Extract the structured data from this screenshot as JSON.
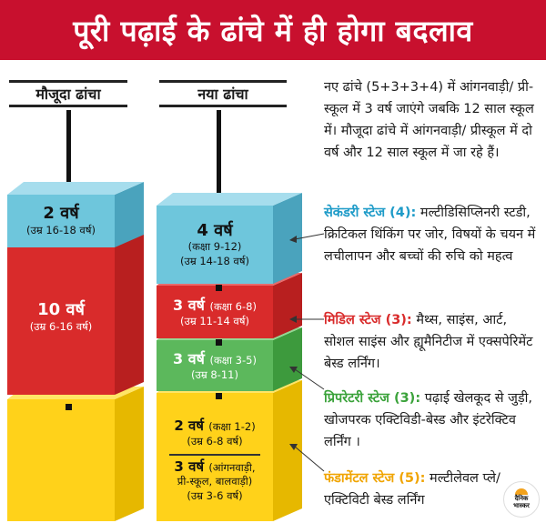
{
  "title": "पूरी पढ़ाई के ढांचे में ही होगा बदलाव",
  "columns": {
    "current": "मौजूदा ढांचा",
    "new": "नया ढांचा"
  },
  "current_blocks": {
    "top": {
      "years": "2 वर्ष",
      "age": "(उम्र 16-18 वर्ष)"
    },
    "middle": {
      "years": "10 वर्ष",
      "age": "(उम्र 6-16 वर्ष)"
    }
  },
  "new_blocks": {
    "secondary": {
      "years": "4 वर्ष",
      "class": "(कक्षा 9-12)",
      "age": "(उम्र 14-18 वर्ष)"
    },
    "middle": {
      "years": "3 वर्ष",
      "class": "(कक्षा 6-8)",
      "age": "(उम्र 11-14 वर्ष)"
    },
    "preparatory": {
      "years": "3 वर्ष",
      "class": "(कक्षा 3-5)",
      "age": "(उम्र 8-11)"
    },
    "foundational_a": {
      "years": "2 वर्ष",
      "class": "(कक्षा 1-2)",
      "age": "(उम्र 6-8 वर्ष)"
    },
    "foundational_b": {
      "years": "3 वर्ष",
      "line1": "(आंगनवाड़ी,",
      "line2": "प्री-स्कूल, बालवाड़ी)",
      "age": "(उम्र 3-6 वर्ष)"
    }
  },
  "descriptions": {
    "intro": "नए ढांचे (5+3+3+4) में आंगनवाड़ी/ प्री-स्कूल में 3 वर्ष जाएंगे जबकि 12 साल स्कूल में। मौजूदा ढांचे में आंगनवाड़ी/ प्रीस्कूल में दो वर्ष और 12 साल स्कूल में जा रहे हैं।",
    "secondary_head": "सेकंडरी स्टेज (4):",
    "secondary_body": " मल्टीडिसिप्लिनरी स्टडी, क्रिटिकल थिंकिंग पर जोर, विषयों के चयन में लचीलापन और बच्चों की रुचि को महत्व",
    "middle_head": "मिडिल स्टेज (3):",
    "middle_body": " मैथ्स, साइंस, आर्ट, सोशल साइंस और ह्यूमैनिटीज में एक्सपेरिमेंट बेस्ड लर्निंग।",
    "prep_head": "प्रिपरेटरी स्टेज (3):",
    "prep_body": " पढ़ाई खेलकूद से जुड़ी, खोजपरक एक्टिविडी-बेस्ड और इंटरेक्टिव  लर्निंग ।",
    "found_head": "फंडामेंटल स्टेज (5):",
    "found_body": " मल्टीलेवल प्ले/ एक्टिविटी बेस्ड लर्निंग"
  },
  "logo": {
    "line1": "दैनिक",
    "line2": "भास्कर"
  },
  "colors": {
    "title_bg": "#c8102e",
    "blue": "#6ec6dc",
    "red": "#d92b2b",
    "green": "#5cb85c",
    "yellow": "#ffd21a",
    "secondary_head": "#1e9bc8",
    "middle_head": "#d92b2b",
    "prep_head": "#3aa23a",
    "found_head": "#f0a400"
  }
}
